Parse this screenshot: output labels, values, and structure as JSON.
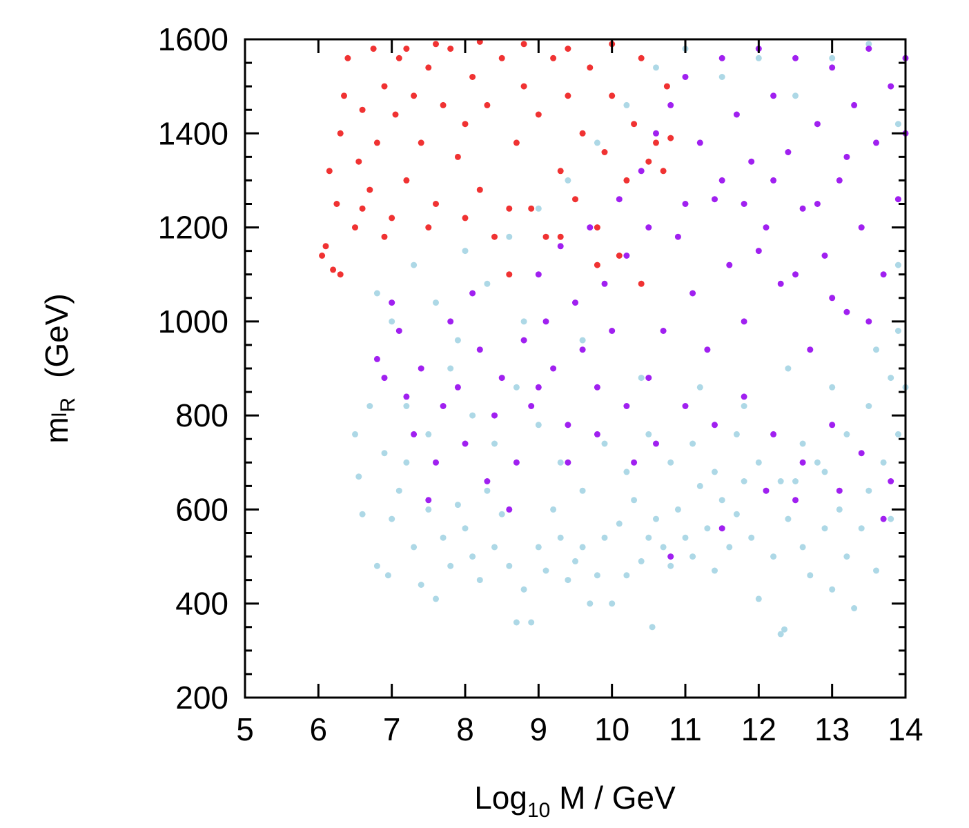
{
  "chart_data": {
    "type": "scatter",
    "xlabel": {
      "base": "Log",
      "sub": "10",
      "rest": " M / GeV"
    },
    "ylabel": {
      "base": "m",
      "sub1": "l",
      "sub2": "R",
      "unit": "(GeV)"
    },
    "xlim": [
      5,
      14
    ],
    "ylim": [
      200,
      1600
    ],
    "xticks": [
      5,
      6,
      7,
      8,
      9,
      10,
      11,
      12,
      13,
      14
    ],
    "xtick_labels": [
      "5",
      "6",
      "7",
      "8",
      "9",
      "10",
      "11",
      "12",
      "13",
      "14"
    ],
    "yticks": [
      200,
      400,
      600,
      800,
      1000,
      1200,
      1400,
      1600
    ],
    "ytick_labels": [
      "200",
      "400",
      "600",
      "800",
      "1000",
      "1200",
      "1400",
      "1600"
    ],
    "grid": false,
    "legend": "none",
    "series": [
      {
        "color": "#add8e6",
        "description_region": "light blue points: broad band, lower edge falling from ~800 at x=6.5 to ~330 at x=12.3, filling to top right",
        "points": [
          [
            6.5,
            760
          ],
          [
            6.6,
            590
          ],
          [
            6.55,
            670
          ],
          [
            6.7,
            820
          ],
          [
            6.8,
            480
          ],
          [
            6.9,
            720
          ],
          [
            6.95,
            460
          ],
          [
            7.0,
            580
          ],
          [
            7.1,
            640
          ],
          [
            7.2,
            700
          ],
          [
            7.3,
            520
          ],
          [
            7.4,
            440
          ],
          [
            7.5,
            600
          ],
          [
            7.6,
            410
          ],
          [
            7.7,
            540
          ],
          [
            7.8,
            480
          ],
          [
            7.9,
            610
          ],
          [
            8.0,
            560
          ],
          [
            8.1,
            500
          ],
          [
            8.2,
            450
          ],
          [
            8.3,
            640
          ],
          [
            8.4,
            520
          ],
          [
            8.5,
            590
          ],
          [
            8.6,
            480
          ],
          [
            8.7,
            360
          ],
          [
            8.8,
            430
          ],
          [
            8.9,
            360
          ],
          [
            9.0,
            520
          ],
          [
            9.1,
            470
          ],
          [
            9.2,
            600
          ],
          [
            9.3,
            540
          ],
          [
            9.4,
            450
          ],
          [
            9.5,
            490
          ],
          [
            9.6,
            520
          ],
          [
            9.7,
            400
          ],
          [
            9.8,
            460
          ],
          [
            9.9,
            540
          ],
          [
            10.0,
            400
          ],
          [
            10.1,
            570
          ],
          [
            10.2,
            460
          ],
          [
            10.3,
            620
          ],
          [
            10.4,
            490
          ],
          [
            10.5,
            540
          ],
          [
            10.55,
            350
          ],
          [
            10.6,
            580
          ],
          [
            10.7,
            520
          ],
          [
            10.8,
            480
          ],
          [
            10.9,
            600
          ],
          [
            11.0,
            540
          ],
          [
            11.1,
            500
          ],
          [
            11.2,
            650
          ],
          [
            11.3,
            560
          ],
          [
            11.4,
            470
          ],
          [
            11.5,
            620
          ],
          [
            11.6,
            520
          ],
          [
            11.7,
            590
          ],
          [
            11.8,
            660
          ],
          [
            11.9,
            540
          ],
          [
            12.0,
            410
          ],
          [
            12.1,
            640
          ],
          [
            12.2,
            500
          ],
          [
            12.3,
            335
          ],
          [
            12.35,
            345
          ],
          [
            12.4,
            580
          ],
          [
            12.5,
            660
          ],
          [
            12.6,
            520
          ],
          [
            12.7,
            460
          ],
          [
            12.8,
            700
          ],
          [
            12.9,
            560
          ],
          [
            13.0,
            430
          ],
          [
            13.1,
            600
          ],
          [
            13.2,
            500
          ],
          [
            13.3,
            390
          ],
          [
            13.4,
            560
          ],
          [
            13.5,
            640
          ],
          [
            13.6,
            470
          ],
          [
            13.7,
            700
          ],
          [
            13.8,
            580
          ],
          [
            13.9,
            760
          ],
          [
            14.0,
            860
          ],
          [
            7.2,
            820
          ],
          [
            7.5,
            760
          ],
          [
            7.8,
            900
          ],
          [
            8.1,
            800
          ],
          [
            8.4,
            740
          ],
          [
            8.7,
            860
          ],
          [
            9.0,
            780
          ],
          [
            9.3,
            700
          ],
          [
            9.6,
            640
          ],
          [
            9.9,
            740
          ],
          [
            10.2,
            680
          ],
          [
            10.5,
            760
          ],
          [
            10.8,
            700
          ],
          [
            11.1,
            740
          ],
          [
            11.4,
            680
          ],
          [
            11.7,
            760
          ],
          [
            12.0,
            700
          ],
          [
            12.3,
            660
          ],
          [
            12.6,
            740
          ],
          [
            12.9,
            680
          ],
          [
            13.2,
            760
          ],
          [
            13.5,
            820
          ],
          [
            13.8,
            880
          ],
          [
            6.8,
            1060
          ],
          [
            7.0,
            1000
          ],
          [
            7.3,
            1120
          ],
          [
            7.6,
            1040
          ],
          [
            8.0,
            1150
          ],
          [
            8.3,
            1080
          ],
          [
            8.6,
            1180
          ],
          [
            9.0,
            1240
          ],
          [
            9.4,
            1300
          ],
          [
            9.8,
            1380
          ],
          [
            10.2,
            1460
          ],
          [
            10.6,
            1540
          ],
          [
            11.0,
            1580
          ],
          [
            11.5,
            1520
          ],
          [
            12.0,
            1560
          ],
          [
            12.5,
            1480
          ],
          [
            13.0,
            1560
          ],
          [
            13.5,
            1590
          ],
          [
            13.9,
            1420
          ],
          [
            13.9,
            1120
          ],
          [
            13.9,
            980
          ],
          [
            11.2,
            860
          ],
          [
            11.8,
            820
          ],
          [
            12.4,
            900
          ],
          [
            13.0,
            860
          ],
          [
            13.6,
            940
          ],
          [
            10.4,
            880
          ],
          [
            9.6,
            960
          ],
          [
            8.8,
            1000
          ],
          [
            7.9,
            960
          ]
        ]
      },
      {
        "color": "#a020f0",
        "description_region": "purple points: dense from x~7 to 14, y from ~500 up to 1600, densest at x>10.5",
        "points": [
          [
            6.8,
            920
          ],
          [
            6.9,
            880
          ],
          [
            7.0,
            1040
          ],
          [
            7.1,
            980
          ],
          [
            7.2,
            840
          ],
          [
            7.3,
            760
          ],
          [
            7.4,
            900
          ],
          [
            7.5,
            620
          ],
          [
            7.6,
            700
          ],
          [
            7.7,
            820
          ],
          [
            7.8,
            1000
          ],
          [
            7.9,
            860
          ],
          [
            8.0,
            740
          ],
          [
            8.1,
            1060
          ],
          [
            8.2,
            940
          ],
          [
            8.3,
            660
          ],
          [
            8.4,
            800
          ],
          [
            8.5,
            880
          ],
          [
            8.6,
            600
          ],
          [
            8.7,
            700
          ],
          [
            8.8,
            960
          ],
          [
            8.9,
            820
          ],
          [
            9.0,
            1100
          ],
          [
            9.1,
            1000
          ],
          [
            9.2,
            900
          ],
          [
            9.3,
            1160
          ],
          [
            9.4,
            780
          ],
          [
            9.5,
            1040
          ],
          [
            9.6,
            940
          ],
          [
            9.7,
            1200
          ],
          [
            9.8,
            860
          ],
          [
            9.9,
            1080
          ],
          [
            10.0,
            980
          ],
          [
            10.1,
            1260
          ],
          [
            10.2,
            1140
          ],
          [
            10.3,
            700
          ],
          [
            10.4,
            1320
          ],
          [
            10.5,
            880
          ],
          [
            10.6,
            1400
          ],
          [
            10.7,
            980
          ],
          [
            10.8,
            1460
          ],
          [
            10.9,
            1180
          ],
          [
            11.0,
            1520
          ],
          [
            11.1,
            1060
          ],
          [
            11.2,
            1380
          ],
          [
            11.3,
            940
          ],
          [
            11.4,
            1260
          ],
          [
            11.5,
            1560
          ],
          [
            11.6,
            1120
          ],
          [
            11.7,
            1440
          ],
          [
            11.8,
            1000
          ],
          [
            11.9,
            1340
          ],
          [
            12.0,
            1580
          ],
          [
            12.1,
            1200
          ],
          [
            12.2,
            1480
          ],
          [
            12.3,
            1080
          ],
          [
            12.4,
            1360
          ],
          [
            12.5,
            1560
          ],
          [
            12.6,
            1240
          ],
          [
            12.7,
            940
          ],
          [
            12.8,
            1420
          ],
          [
            12.9,
            1140
          ],
          [
            13.0,
            1540
          ],
          [
            13.1,
            1300
          ],
          [
            13.2,
            1020
          ],
          [
            13.3,
            1460
          ],
          [
            13.4,
            1200
          ],
          [
            13.5,
            1580
          ],
          [
            13.6,
            1380
          ],
          [
            13.7,
            1100
          ],
          [
            13.8,
            1500
          ],
          [
            13.9,
            1260
          ],
          [
            14.0,
            1560
          ],
          [
            9.0,
            860
          ],
          [
            9.4,
            700
          ],
          [
            9.8,
            760
          ],
          [
            10.2,
            820
          ],
          [
            10.6,
            740
          ],
          [
            11.0,
            820
          ],
          [
            11.4,
            780
          ],
          [
            11.8,
            840
          ],
          [
            12.2,
            760
          ],
          [
            12.6,
            700
          ],
          [
            13.0,
            780
          ],
          [
            13.4,
            720
          ],
          [
            13.8,
            660
          ],
          [
            10.8,
            500
          ],
          [
            11.5,
            560
          ],
          [
            12.1,
            640
          ],
          [
            12.5,
            620
          ],
          [
            13.1,
            640
          ],
          [
            13.7,
            580
          ],
          [
            10.5,
            1200
          ],
          [
            11.0,
            1250
          ],
          [
            11.5,
            1300
          ],
          [
            12.0,
            1150
          ],
          [
            12.5,
            1100
          ],
          [
            13.0,
            1050
          ],
          [
            13.5,
            1000
          ],
          [
            14.0,
            1400
          ],
          [
            11.8,
            1250
          ],
          [
            12.2,
            1300
          ],
          [
            12.8,
            1250
          ],
          [
            13.2,
            1350
          ]
        ]
      },
      {
        "color": "#f03232",
        "description_region": "red points: upper-left, x~6 to ~10.9, y from ~1100 to 1600",
        "points": [
          [
            6.05,
            1140
          ],
          [
            6.1,
            1160
          ],
          [
            6.15,
            1320
          ],
          [
            6.2,
            1110
          ],
          [
            6.25,
            1250
          ],
          [
            6.3,
            1400
          ],
          [
            6.35,
            1480
          ],
          [
            6.4,
            1560
          ],
          [
            6.5,
            1200
          ],
          [
            6.55,
            1340
          ],
          [
            6.6,
            1450
          ],
          [
            6.7,
            1280
          ],
          [
            6.75,
            1580
          ],
          [
            6.8,
            1380
          ],
          [
            6.9,
            1500
          ],
          [
            7.0,
            1220
          ],
          [
            7.05,
            1440
          ],
          [
            7.1,
            1560
          ],
          [
            7.2,
            1300
          ],
          [
            7.3,
            1480
          ],
          [
            7.4,
            1380
          ],
          [
            7.5,
            1540
          ],
          [
            7.6,
            1250
          ],
          [
            7.7,
            1460
          ],
          [
            7.8,
            1580
          ],
          [
            7.9,
            1350
          ],
          [
            8.0,
            1420
          ],
          [
            8.1,
            1520
          ],
          [
            8.2,
            1280
          ],
          [
            8.3,
            1460
          ],
          [
            8.4,
            1180
          ],
          [
            8.5,
            1560
          ],
          [
            8.6,
            1100
          ],
          [
            8.7,
            1380
          ],
          [
            8.8,
            1500
          ],
          [
            8.9,
            1240
          ],
          [
            9.0,
            1440
          ],
          [
            9.1,
            1180
          ],
          [
            9.2,
            1560
          ],
          [
            9.3,
            1320
          ],
          [
            9.4,
            1480
          ],
          [
            9.5,
            1260
          ],
          [
            9.6,
            1400
          ],
          [
            9.7,
            1540
          ],
          [
            9.8,
            1200
          ],
          [
            9.9,
            1360
          ],
          [
            10.0,
            1480
          ],
          [
            10.1,
            1140
          ],
          [
            10.2,
            1300
          ],
          [
            10.3,
            1420
          ],
          [
            10.4,
            1560
          ],
          [
            10.5,
            1340
          ],
          [
            10.6,
            1380
          ],
          [
            10.7,
            1320
          ],
          [
            10.75,
            1500
          ],
          [
            10.8,
            1390
          ],
          [
            6.3,
            1100
          ],
          [
            6.6,
            1240
          ],
          [
            6.9,
            1180
          ],
          [
            7.5,
            1200
          ],
          [
            8.0,
            1220
          ],
          [
            8.6,
            1240
          ],
          [
            9.3,
            1180
          ],
          [
            9.8,
            1120
          ],
          [
            10.4,
            1080
          ],
          [
            7.2,
            1580
          ],
          [
            7.6,
            1590
          ],
          [
            8.2,
            1595
          ],
          [
            8.8,
            1590
          ],
          [
            9.4,
            1580
          ],
          [
            10.0,
            1590
          ]
        ]
      }
    ]
  }
}
